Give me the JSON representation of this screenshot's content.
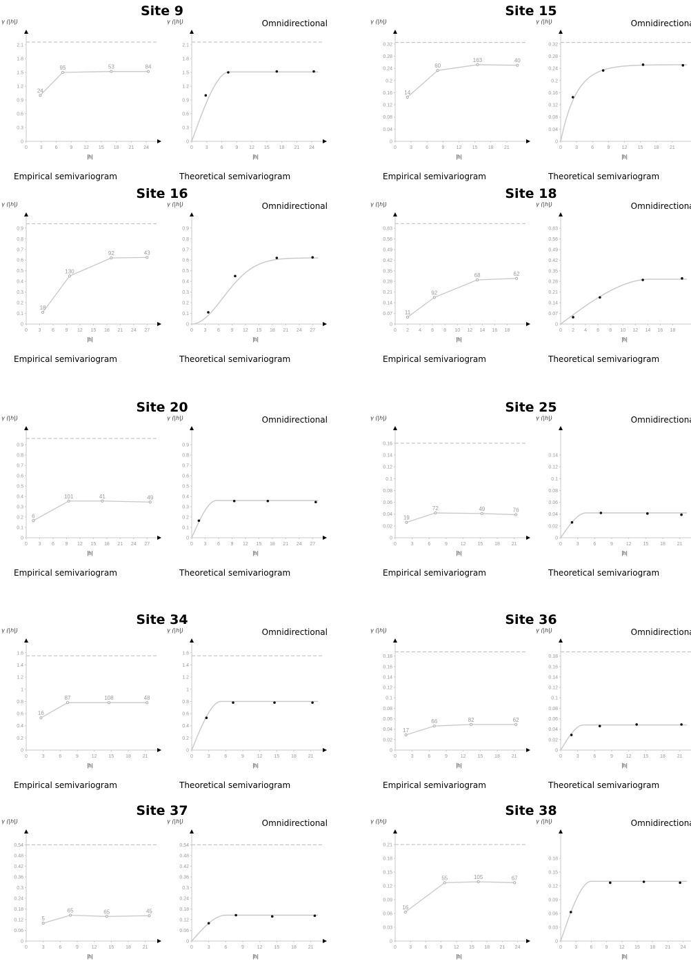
{
  "labels": {
    "empirical": "Empirical semivariogram",
    "theoretical": "Theoretical semivariogram",
    "omni": "Omnidirectional",
    "ylabel": "γ (|h|)",
    "xlabel": "|h|"
  },
  "colors": {
    "line": "#c8c8c8",
    "dash": "#bbbbbb",
    "point": "#111111",
    "axis": "#333333"
  },
  "chart_data": [
    {
      "type": "line",
      "title": "Site 9",
      "yticks": [
        0,
        0.3,
        0.6,
        0.9,
        1.2,
        1.5,
        1.8,
        2.1
      ],
      "xticks": [
        0,
        3,
        6,
        9,
        12,
        15,
        18,
        21,
        24
      ],
      "xmax": 25.5,
      "ymax": 2.25,
      "empirical": [
        {
          "x": 2.8,
          "y": 1.0,
          "n": "24"
        },
        {
          "x": 7.3,
          "y": 1.5,
          "n": "95"
        },
        {
          "x": 17,
          "y": 1.52,
          "n": "53"
        },
        {
          "x": 24.4,
          "y": 1.52,
          "n": "84"
        }
      ],
      "dashed_sill": 2.16,
      "theo_dashed": true,
      "theo_yticks": [
        0,
        0.3,
        0.6,
        0.9,
        1.2,
        1.5,
        1.8,
        2.1
      ],
      "model": {
        "type": "spherical",
        "sill": 1.51,
        "range": 7.5
      }
    },
    {
      "type": "line",
      "title": "Site 15",
      "yticks": [
        0,
        0.04,
        0.08,
        0.12,
        0.16,
        0.2,
        0.24,
        0.28,
        0.32
      ],
      "xticks": [
        0,
        3,
        6,
        9,
        12,
        15,
        18,
        21
      ],
      "xmax": 24,
      "ymax": 0.34,
      "empirical": [
        {
          "x": 2.3,
          "y": 0.145,
          "n": "14"
        },
        {
          "x": 8,
          "y": 0.233,
          "n": "60"
        },
        {
          "x": 15.5,
          "y": 0.252,
          "n": "163"
        },
        {
          "x": 23,
          "y": 0.25,
          "n": "40"
        }
      ],
      "dashed_sill": 0.325,
      "theo_dashed": true,
      "theo_yticks": [
        0,
        0.04,
        0.08,
        0.12,
        0.16,
        0.2,
        0.24,
        0.28,
        0.32
      ],
      "model": {
        "type": "exponential",
        "sill": 0.252,
        "range": 9
      }
    },
    {
      "type": "line",
      "title": "Site 16",
      "yticks": [
        0,
        0.1,
        0.2,
        0.3,
        0.4,
        0.5,
        0.6,
        0.7,
        0.8,
        0.9
      ],
      "xticks": [
        0,
        3,
        6,
        9,
        12,
        15,
        18,
        21,
        24,
        27
      ],
      "xmax": 28.5,
      "ymax": 0.97,
      "empirical": [
        {
          "x": 3.7,
          "y": 0.11,
          "n": "18"
        },
        {
          "x": 9.7,
          "y": 0.45,
          "n": "130"
        },
        {
          "x": 19,
          "y": 0.62,
          "n": "92"
        },
        {
          "x": 27,
          "y": 0.625,
          "n": "43"
        }
      ],
      "dashed_sill": 0.94,
      "theo_dashed": false,
      "theo_yticks": [
        0,
        0.1,
        0.2,
        0.3,
        0.4,
        0.5,
        0.6,
        0.7,
        0.8,
        0.9
      ],
      "model": {
        "type": "gaussian",
        "sill": 0.62,
        "range": 17
      }
    },
    {
      "type": "line",
      "title": "Site 18",
      "yticks": [
        0,
        0.07,
        0.14,
        0.21,
        0.28,
        0.35,
        0.42,
        0.49,
        0.56,
        0.63
      ],
      "xticks": [
        0,
        2,
        4,
        6,
        8,
        10,
        12,
        14,
        16,
        18
      ],
      "xmax": 20.5,
      "ymax": 0.68,
      "empirical": [
        {
          "x": 2,
          "y": 0.045,
          "n": "11"
        },
        {
          "x": 6.3,
          "y": 0.175,
          "n": "92"
        },
        {
          "x": 13.2,
          "y": 0.29,
          "n": "68"
        },
        {
          "x": 19.5,
          "y": 0.3,
          "n": "62"
        }
      ],
      "dashed_sill": 0.66,
      "theo_dashed": false,
      "theo_yticks": [
        0,
        0.07,
        0.14,
        0.21,
        0.28,
        0.35,
        0.42,
        0.49,
        0.56,
        0.63
      ],
      "model": {
        "type": "spherical",
        "sill": 0.295,
        "range": 14.5
      }
    },
    {
      "type": "line",
      "title": "Site 20",
      "yticks": [
        0,
        0.1,
        0.2,
        0.3,
        0.4,
        0.5,
        0.6,
        0.7,
        0.8,
        0.9
      ],
      "xticks": [
        0,
        3,
        6,
        9,
        12,
        15,
        18,
        21,
        24,
        27
      ],
      "xmax": 28.5,
      "ymax": 1.0,
      "empirical": [
        {
          "x": 1.6,
          "y": 0.165,
          "n": "6"
        },
        {
          "x": 9.5,
          "y": 0.355,
          "n": "101"
        },
        {
          "x": 17,
          "y": 0.355,
          "n": "41"
        },
        {
          "x": 27.7,
          "y": 0.345,
          "n": "49"
        }
      ],
      "dashed_sill": 0.96,
      "theo_dashed": false,
      "theo_yticks": [
        0,
        0.1,
        0.2,
        0.3,
        0.4,
        0.5,
        0.6,
        0.7,
        0.8,
        0.9
      ],
      "model": {
        "type": "spherical",
        "sill": 0.36,
        "range": 5.5
      }
    },
    {
      "type": "line",
      "title": "Site 25",
      "yticks": [
        0,
        0.02,
        0.04,
        0.06,
        0.08,
        0.1,
        0.12,
        0.14,
        0.16
      ],
      "xticks": [
        0,
        3,
        6,
        9,
        12,
        15,
        18,
        21
      ],
      "xmax": 22.5,
      "ymax": 0.175,
      "empirical": [
        {
          "x": 2,
          "y": 0.026,
          "n": "19"
        },
        {
          "x": 7.1,
          "y": 0.042,
          "n": "72"
        },
        {
          "x": 15.3,
          "y": 0.041,
          "n": "49"
        },
        {
          "x": 21.3,
          "y": 0.039,
          "n": "76"
        }
      ],
      "dashed_sill": 0.16,
      "theo_dashed": false,
      "theo_yticks": [
        0,
        0.02,
        0.04,
        0.06,
        0.08,
        0.1,
        0.12,
        0.14
      ],
      "model": {
        "type": "spherical",
        "sill": 0.042,
        "range": 4.5
      }
    },
    {
      "type": "line",
      "title": "Site 34",
      "yticks": [
        0,
        0.2,
        0.4,
        0.6,
        0.8,
        1,
        1.2,
        1.4,
        1.6
      ],
      "xticks": [
        0,
        3,
        6,
        9,
        12,
        15,
        18,
        21
      ],
      "xmax": 22.5,
      "ymax": 1.7,
      "empirical": [
        {
          "x": 2.6,
          "y": 0.53,
          "n": "16"
        },
        {
          "x": 7.3,
          "y": 0.78,
          "n": "87"
        },
        {
          "x": 14.6,
          "y": 0.78,
          "n": "108"
        },
        {
          "x": 21.3,
          "y": 0.78,
          "n": "48"
        }
      ],
      "dashed_sill": 1.55,
      "theo_dashed": true,
      "theo_yticks": [
        0,
        0.2,
        0.4,
        0.6,
        0.8,
        1,
        1.2,
        1.4,
        1.6
      ],
      "model": {
        "type": "spherical",
        "sill": 0.8,
        "range": 5.2
      }
    },
    {
      "type": "line",
      "title": "Site 36",
      "yticks": [
        0,
        0.02,
        0.04,
        0.06,
        0.08,
        0.1,
        0.12,
        0.14,
        0.16,
        0.18
      ],
      "xticks": [
        0,
        3,
        6,
        9,
        12,
        15,
        18,
        21
      ],
      "xmax": 22.5,
      "ymax": 0.198,
      "empirical": [
        {
          "x": 1.9,
          "y": 0.029,
          "n": "17"
        },
        {
          "x": 6.9,
          "y": 0.046,
          "n": "66"
        },
        {
          "x": 13.4,
          "y": 0.049,
          "n": "82"
        },
        {
          "x": 21.3,
          "y": 0.049,
          "n": "62"
        }
      ],
      "dashed_sill": 0.188,
      "theo_dashed": true,
      "theo_yticks": [
        0,
        0.02,
        0.04,
        0.06,
        0.08,
        0.1,
        0.12,
        0.14,
        0.16,
        0.18
      ],
      "model": {
        "type": "spherical",
        "sill": 0.048,
        "range": 4
      }
    },
    {
      "type": "line",
      "title": "Site 37",
      "yticks": [
        0,
        0.06,
        0.12,
        0.18,
        0.24,
        0.3,
        0.36,
        0.42,
        0.48,
        0.54
      ],
      "xticks": [
        0,
        3,
        6,
        9,
        12,
        15,
        18,
        21
      ],
      "xmax": 22.5,
      "ymax": 0.58,
      "empirical": [
        {
          "x": 3,
          "y": 0.1,
          "n": "5"
        },
        {
          "x": 7.8,
          "y": 0.145,
          "n": "65"
        },
        {
          "x": 14.2,
          "y": 0.138,
          "n": "65"
        },
        {
          "x": 21.7,
          "y": 0.142,
          "n": "45"
        }
      ],
      "dashed_sill": 0.54,
      "theo_dashed": true,
      "theo_yticks": [
        0,
        0.06,
        0.12,
        0.18,
        0.24,
        0.3,
        0.36,
        0.42,
        0.48,
        0.54
      ],
      "model": {
        "type": "spherical",
        "sill": 0.145,
        "range": 6
      }
    },
    {
      "type": "line",
      "title": "Site 38",
      "yticks": [
        0,
        0.03,
        0.06,
        0.09,
        0.12,
        0.15,
        0.18,
        0.21
      ],
      "xticks": [
        0,
        3,
        6,
        9,
        12,
        15,
        18,
        21,
        24
      ],
      "xmax": 25,
      "ymax": 0.225,
      "empirical": [
        {
          "x": 2,
          "y": 0.063,
          "n": "16"
        },
        {
          "x": 9.7,
          "y": 0.127,
          "n": "55"
        },
        {
          "x": 16.3,
          "y": 0.129,
          "n": "105"
        },
        {
          "x": 23.4,
          "y": 0.127,
          "n": "67"
        }
      ],
      "dashed_sill": 0.21,
      "theo_dashed": false,
      "theo_yticks": [
        0,
        0.03,
        0.06,
        0.09,
        0.12,
        0.15,
        0.18
      ],
      "model": {
        "type": "spherical",
        "sill": 0.13,
        "range": 6
      }
    }
  ]
}
